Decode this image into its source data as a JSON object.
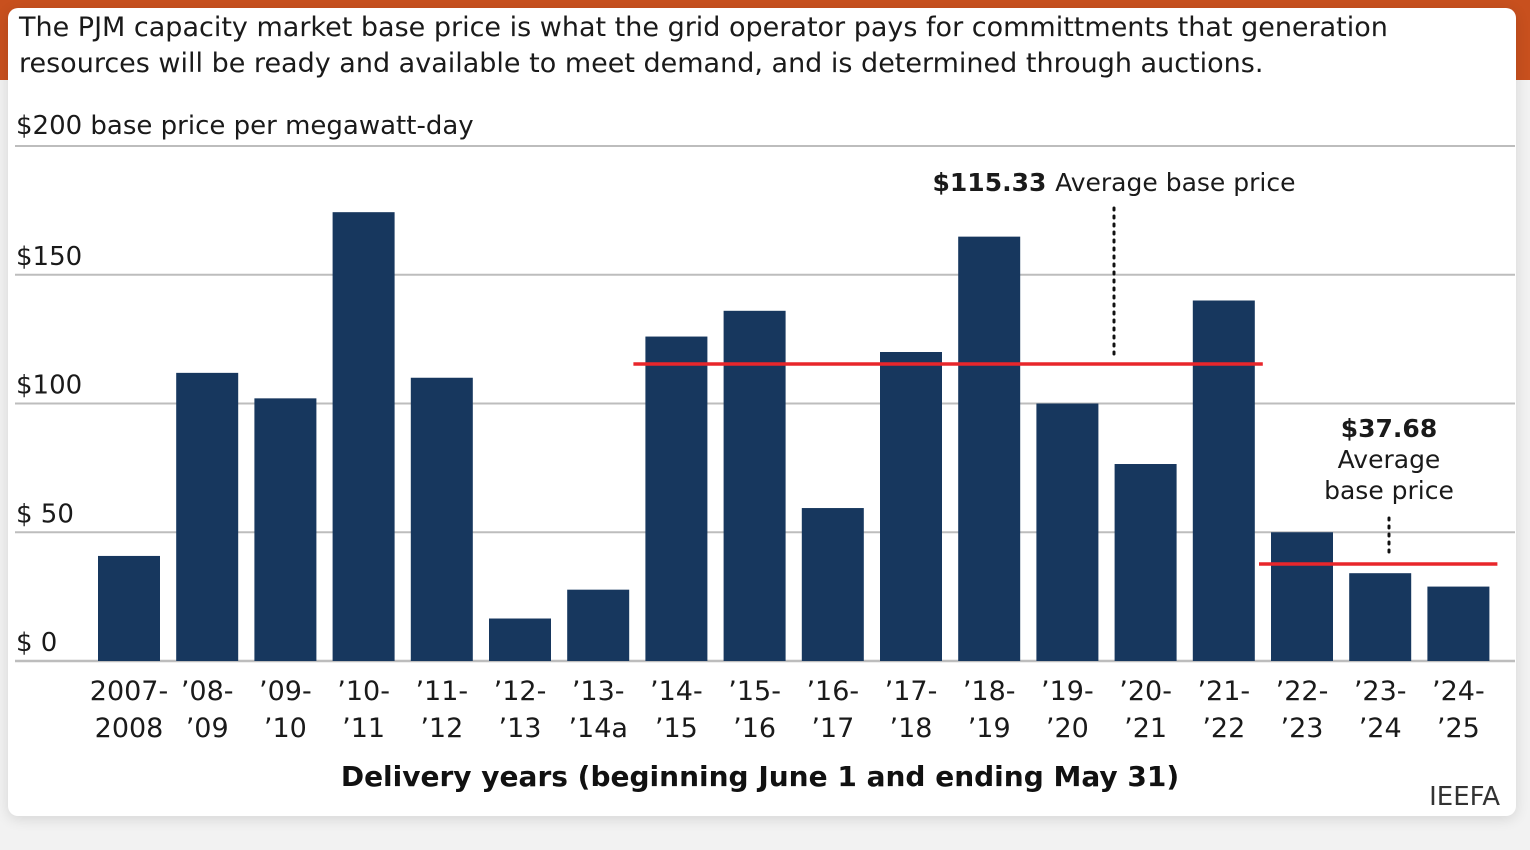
{
  "subtitle": "The PJM capacity market base price is what the grid operator pays for committments that generation resources will be ready and available to meet demand, and is determined through auctions.",
  "source": "IEEFA",
  "colors": {
    "bar": "#17375e",
    "avg_line": "#e8262b",
    "grid": "#bdbdbd",
    "band": "#c8501e"
  },
  "chart_data": {
    "type": "bar",
    "ylabel": "$200 base price per megawatt-day",
    "xlabel": "Delivery years (beginning June 1 and ending May 31)",
    "ylim": [
      0,
      200
    ],
    "yticks": [
      {
        "value": 0,
        "label": "$  0"
      },
      {
        "value": 50,
        "label": "$  50"
      },
      {
        "value": 100,
        "label": "$100"
      },
      {
        "value": 150,
        "label": "$150"
      },
      {
        "value": 200,
        "label": ""
      }
    ],
    "grid": true,
    "categories": [
      [
        "2007-",
        "2008"
      ],
      [
        "’08-",
        "’09"
      ],
      [
        "’09-",
        "’10"
      ],
      [
        "’10-",
        "’11"
      ],
      [
        "’11-",
        "’12"
      ],
      [
        "’12-",
        "’13"
      ],
      [
        "’13-",
        "’14a"
      ],
      [
        "’14-",
        "’15"
      ],
      [
        "’15-",
        "’16"
      ],
      [
        "’16-",
        "’17"
      ],
      [
        "’17-",
        "’18"
      ],
      [
        "’18-",
        "’19"
      ],
      [
        "’19-",
        "’20"
      ],
      [
        "’20-",
        "’21"
      ],
      [
        "’21-",
        "’22"
      ],
      [
        "’22-",
        "’23"
      ],
      [
        "’23-",
        "’24"
      ],
      [
        "’24-",
        "’25"
      ]
    ],
    "values": [
      40.8,
      111.9,
      102.0,
      174.3,
      110.0,
      16.5,
      27.7,
      126.0,
      136.0,
      59.4,
      120.0,
      164.8,
      100.0,
      76.5,
      140.0,
      50.0,
      34.1,
      28.9
    ],
    "averages": [
      {
        "value": 115.33,
        "amount": "$115.33",
        "label_lines": [
          "Average base price"
        ],
        "from_index": 7,
        "to_index": 14
      },
      {
        "value": 37.68,
        "amount": "$37.68",
        "label_lines": [
          "Average",
          "base price"
        ],
        "from_index": 15,
        "to_index": 17
      }
    ]
  }
}
